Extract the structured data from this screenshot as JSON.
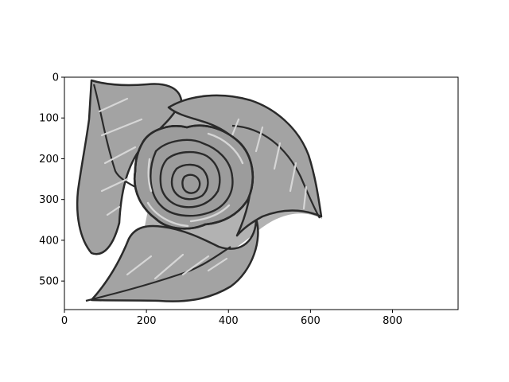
{
  "chart_data": {
    "type": "image",
    "description_of_content": "grayscale sketch of a rose with leaves",
    "xlim": [
      0,
      960
    ],
    "ylim": [
      570,
      0
    ],
    "y_inverted": true,
    "x_ticks": [
      0,
      200,
      400,
      600,
      800
    ],
    "y_ticks": [
      0,
      100,
      200,
      300,
      400,
      500
    ],
    "grid": false,
    "title": "",
    "xlabel": "",
    "ylabel": "",
    "colors": {
      "outline": "#2a2a2a",
      "petal_fill": "#9c9c9c",
      "leaf_fill": "#a3a3a3",
      "highlight": "#d6d6d6",
      "shadow": "#555555"
    }
  }
}
